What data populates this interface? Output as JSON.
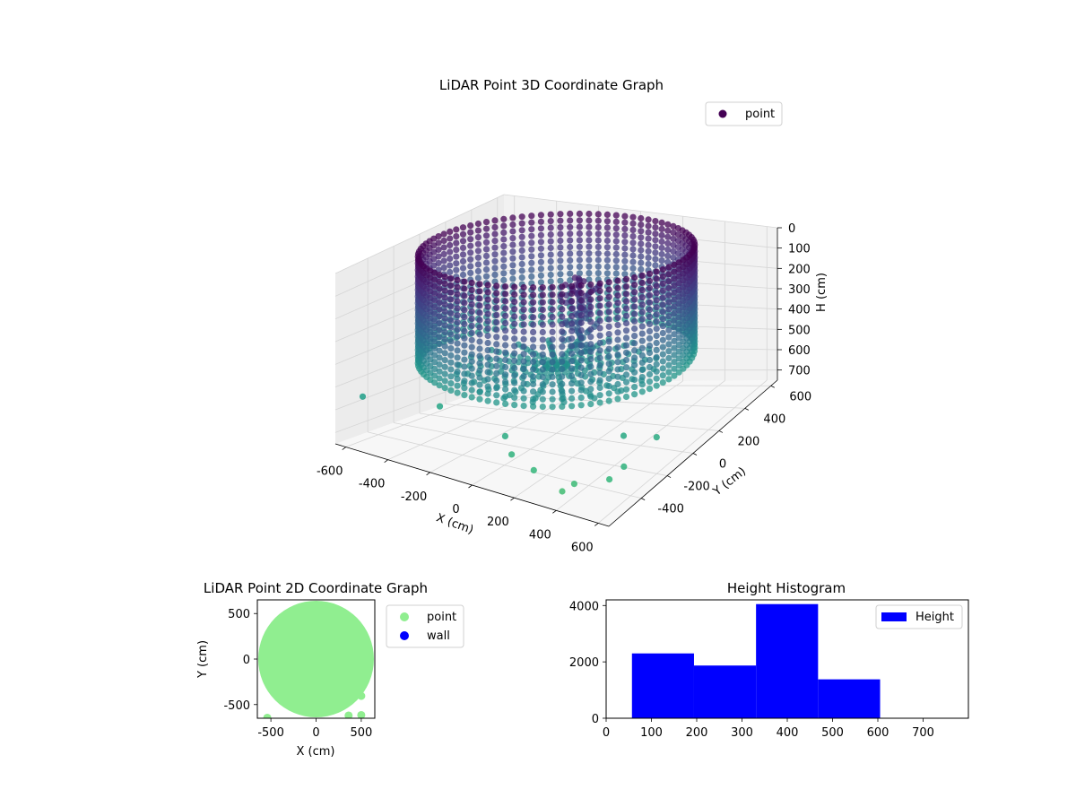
{
  "chart_data": [
    {
      "id": "cylinder3d",
      "type": "scatter",
      "title": "LiDAR Point 3D Coordinate Graph",
      "xlabel": "X (cm)",
      "ylabel": "Y (cm)",
      "zlabel": "H (cm)",
      "xlim": [
        -650,
        650
      ],
      "ylim": [
        -650,
        650
      ],
      "zlim": [
        0,
        750
      ],
      "z_inverted": true,
      "xticks": [
        -600,
        -400,
        -200,
        0,
        200,
        400,
        600
      ],
      "yticks": [
        -400,
        -200,
        0,
        200,
        400,
        600
      ],
      "zticks": [
        0,
        100,
        200,
        300,
        400,
        500,
        600,
        700
      ],
      "legend": {
        "position": "top-right",
        "entries": [
          "point"
        ]
      },
      "colormap": "viridis",
      "grid": true,
      "shape": {
        "kind": "cylindrical wall with central mound",
        "radius_cm": 560,
        "wall_height_range_cm": [
          0,
          470
        ]
      },
      "outliers": [
        {
          "x": -600,
          "y": -520,
          "h": 560
        },
        {
          "x": -320,
          "y": -380,
          "h": 580
        },
        {
          "x": 40,
          "y": -460,
          "h": 610
        },
        {
          "x": 120,
          "y": -540,
          "h": 640
        },
        {
          "x": 250,
          "y": -580,
          "h": 660
        },
        {
          "x": 410,
          "y": -620,
          "h": 690
        },
        {
          "x": 430,
          "y": -560,
          "h": 680
        },
        {
          "x": 560,
          "y": -500,
          "h": 660
        },
        {
          "x": 580,
          "y": -420,
          "h": 640
        },
        {
          "x": 600,
          "y": -200,
          "h": 610
        },
        {
          "x": 480,
          "y": -260,
          "h": 600
        }
      ]
    },
    {
      "id": "scatter2d",
      "type": "scatter",
      "title": "LiDAR Point 2D Coordinate Graph",
      "xlabel": "X (cm)",
      "ylabel": "Y (cm)",
      "xlim": [
        -650,
        650
      ],
      "ylim": [
        -650,
        650
      ],
      "xticks": [
        -500,
        0,
        500
      ],
      "yticks": [
        -500,
        0,
        500
      ],
      "legend": {
        "position": "outside-right",
        "entries": [
          "point",
          "wall"
        ]
      },
      "series": [
        {
          "name": "point",
          "color": "#90ee90",
          "disk": {
            "cx": 0,
            "cy": 0,
            "r": 640
          },
          "points": [
            [
              -540,
              -645
            ],
            [
              360,
              -620
            ],
            [
              500,
              -615
            ],
            [
              500,
              -405
            ]
          ]
        },
        {
          "name": "wall",
          "color": "#0000ff",
          "points": []
        }
      ]
    },
    {
      "id": "histogram",
      "type": "bar",
      "title": "Height Histogram",
      "xlim": [
        0,
        800
      ],
      "ylim": [
        0,
        4200
      ],
      "xticks": [
        0,
        100,
        200,
        300,
        400,
        500,
        600,
        700
      ],
      "yticks": [
        0,
        2000,
        4000
      ],
      "legend": {
        "position": "top-right",
        "entries": [
          "Height"
        ]
      },
      "series": [
        {
          "name": "Height",
          "color": "#0000ff",
          "bins": [
            {
              "x0": 57,
              "x1": 194,
              "count": 2300
            },
            {
              "x0": 194,
              "x1": 331,
              "count": 1870
            },
            {
              "x0": 331,
              "x1": 468,
              "count": 4050
            },
            {
              "x0": 468,
              "x1": 605,
              "count": 1380
            }
          ]
        }
      ]
    }
  ]
}
